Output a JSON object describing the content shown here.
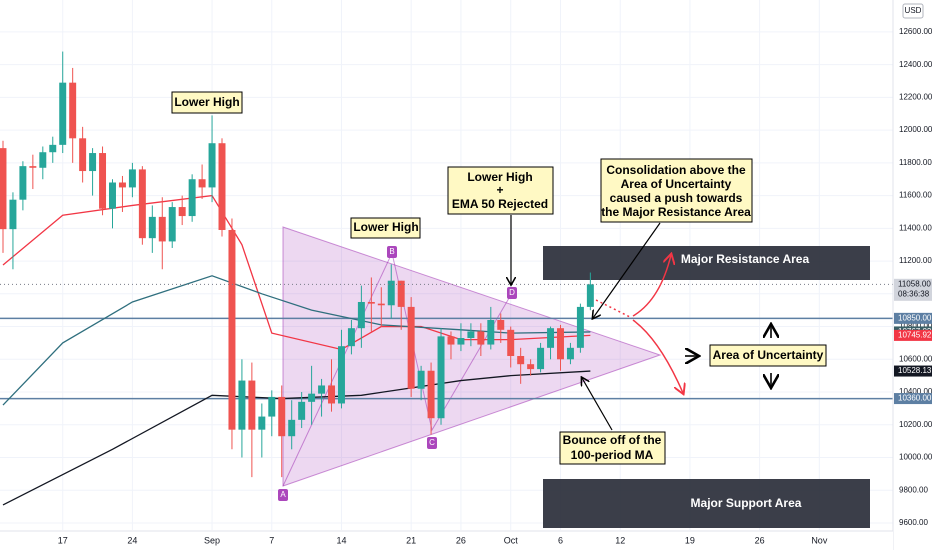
{
  "chart_data": {
    "type": "candlestick",
    "currency": "USD",
    "xlim": [
      -6.3,
      83.4
    ],
    "ylim": [
      9557,
      12795
    ],
    "grid": true,
    "xticks": [
      {
        "value": 0,
        "label": "17"
      },
      {
        "value": 7,
        "label": "24"
      },
      {
        "value": 15,
        "label": "Sep"
      },
      {
        "value": 21,
        "label": "7"
      },
      {
        "value": 28,
        "label": "14"
      },
      {
        "value": 35,
        "label": "21"
      },
      {
        "value": 40,
        "label": "26"
      },
      {
        "value": 45,
        "label": "Oct"
      },
      {
        "value": 50,
        "label": "6"
      },
      {
        "value": 56,
        "label": "12"
      },
      {
        "value": 63,
        "label": "19"
      },
      {
        "value": 70,
        "label": "26"
      },
      {
        "value": 76,
        "label": "Nov"
      }
    ],
    "yticks": [
      {
        "value": 9600,
        "label": "9600.00"
      },
      {
        "value": 9800,
        "label": "9800.00"
      },
      {
        "value": 10000,
        "label": "10000.00"
      },
      {
        "value": 10200,
        "label": "10200.00"
      },
      {
        "value": 10400,
        "label": "10400.00"
      },
      {
        "value": 10600,
        "label": "10600.00"
      },
      {
        "value": 10800,
        "label": "10800.00"
      },
      {
        "value": 11000,
        "label": "11000.00"
      },
      {
        "value": 11200,
        "label": "11200.00"
      },
      {
        "value": 11400,
        "label": "11400.00"
      },
      {
        "value": 11600,
        "label": "11600.00"
      },
      {
        "value": 11800,
        "label": "11800.00"
      },
      {
        "value": 12000,
        "label": "12000.00"
      },
      {
        "value": 12200,
        "label": "12200.00"
      },
      {
        "value": 12400,
        "label": "12400.00"
      },
      {
        "value": 12600,
        "label": "12600.00"
      }
    ],
    "up_color": "#26a69a",
    "down_color": "#ef5350",
    "candles": {
      "x": [
        -6,
        -5,
        -4,
        -3,
        -2,
        -1,
        0,
        1,
        2,
        3,
        4,
        5,
        6,
        7,
        8,
        9,
        10,
        11,
        12,
        13,
        14,
        15,
        16,
        17,
        18,
        19,
        20,
        21,
        22,
        23,
        24,
        25,
        26,
        27,
        28,
        29,
        30,
        31,
        32,
        33,
        34,
        35,
        36,
        37,
        38,
        39,
        40,
        41,
        42,
        43,
        44,
        45,
        46,
        47,
        48,
        49,
        50,
        51,
        52,
        53
      ],
      "open": [
        11890,
        11395,
        11575,
        11780,
        11770,
        11865,
        11910,
        12290,
        11950,
        11750,
        11860,
        11520,
        11680,
        11650,
        11760,
        11340,
        11470,
        11320,
        11530,
        11475,
        11700,
        11650,
        11920,
        11390,
        10170,
        10470,
        10170,
        10250,
        10370,
        10130,
        10230,
        10340,
        10390,
        10440,
        10330,
        10680,
        10790,
        10950,
        10940,
        10930,
        11080,
        10920,
        10420,
        10530,
        10240,
        10740,
        10690,
        10730,
        10770,
        10690,
        10840,
        10780,
        10620,
        10570,
        10540,
        10670,
        10790,
        10600,
        10670,
        10920
      ],
      "high": [
        11935,
        11620,
        11810,
        11850,
        11900,
        11960,
        12480,
        12380,
        12020,
        11890,
        11900,
        11700,
        11720,
        11800,
        11780,
        11540,
        11590,
        11560,
        11600,
        11730,
        11790,
        12090,
        11950,
        11460,
        10600,
        10580,
        10330,
        10410,
        10440,
        10350,
        10400,
        10560,
        10480,
        10600,
        10780,
        10840,
        11050,
        11100,
        11040,
        11180,
        11080,
        10980,
        10560,
        10580,
        10790,
        10770,
        10820,
        10820,
        10820,
        10920,
        10880,
        10800,
        10670,
        10600,
        10700,
        10800,
        10810,
        10700,
        10940,
        11130
      ],
      "low": [
        11250,
        11150,
        11510,
        11640,
        11700,
        11800,
        11860,
        11800,
        11680,
        11600,
        11480,
        11400,
        11500,
        11590,
        11300,
        11250,
        11150,
        11280,
        11420,
        11440,
        11580,
        11560,
        11350,
        10050,
        10000,
        9880,
        10000,
        10130,
        9880,
        10050,
        10180,
        10200,
        10250,
        10280,
        10300,
        10630,
        10670,
        10770,
        10800,
        10850,
        10780,
        10370,
        10350,
        10140,
        10200,
        10600,
        10650,
        10680,
        10620,
        10660,
        10700,
        10550,
        10450,
        10500,
        10520,
        10600,
        10530,
        10570,
        10640,
        10900
      ],
      "close": [
        11395,
        11575,
        11780,
        11770,
        11865,
        11910,
        12290,
        11950,
        11750,
        11860,
        11520,
        11680,
        11650,
        11760,
        11340,
        11470,
        11320,
        11530,
        11475,
        11700,
        11650,
        11920,
        11390,
        10170,
        10470,
        10170,
        10250,
        10370,
        10130,
        10230,
        10340,
        10390,
        10440,
        10330,
        10680,
        10790,
        10950,
        10940,
        10930,
        11080,
        10920,
        10420,
        10530,
        10240,
        10740,
        10690,
        10730,
        10770,
        10690,
        10840,
        10780,
        10620,
        10570,
        10540,
        10670,
        10790,
        10600,
        10670,
        10920,
        11058
      ]
    },
    "lines": [
      {
        "color": "#f23645",
        "x": [
          -6,
          0,
          7,
          15,
          18,
          21,
          28,
          32,
          36,
          40,
          45,
          53
        ],
        "values": [
          11176,
          11480,
          11540,
          11600,
          11300,
          10760,
          10660,
          10800,
          10800,
          10720,
          10720,
          10745.92
        ]
      },
      {
        "color": "#2f6f7e",
        "x": [
          -6,
          0,
          7,
          15,
          20,
          25,
          32,
          40,
          45,
          53
        ],
        "values": [
          10320,
          10700,
          10950,
          11110,
          11000,
          10900,
          10810,
          10780,
          10760,
          10767.02
        ]
      },
      {
        "color": "#131722",
        "x": [
          -6,
          5,
          15,
          22,
          30,
          40,
          45,
          53
        ],
        "values": [
          9710,
          10050,
          10380,
          10360,
          10380,
          10470,
          10500,
          10528.13
        ]
      }
    ],
    "hlines": [
      {
        "value": 10850,
        "color": "#5d7fa3"
      },
      {
        "value": 10360,
        "color": "#5d7fa3"
      }
    ],
    "price_labels": [
      {
        "value": 11058,
        "label": "11058.00",
        "color": "#d1d4dc"
      },
      {
        "value": 10850,
        "label": "10850.00",
        "color": "#5d7fa3"
      },
      {
        "value": 10767.02,
        "label": "10767.02",
        "color": "#3a5f66"
      },
      {
        "value": 10745.92,
        "label": "10745.92",
        "color": "#f23645"
      },
      {
        "value": 10528.13,
        "label": "10528.13",
        "color": "#131722"
      },
      {
        "value": 10360,
        "label": "10360.00",
        "color": "#5d7fa3"
      }
    ],
    "countdown": "08:36:38",
    "annotations": {
      "lower_high_1": "Lower High",
      "lower_high_2": "Lower High",
      "ema_rejected": [
        "Lower High",
        "+",
        "EMA 50 Rejected"
      ],
      "consolidation": [
        "Consolidation above the",
        "Area of Uncertainty",
        "caused a push towards",
        "the Major Resistance Area"
      ],
      "resistance": "Major Resistance Area",
      "uncertainty": "Area of Uncertainty",
      "bounce": [
        "Bounce off of the",
        "100-period MA"
      ],
      "support": "Major Support Area",
      "points": [
        "A",
        "B",
        "C",
        "D"
      ]
    }
  }
}
